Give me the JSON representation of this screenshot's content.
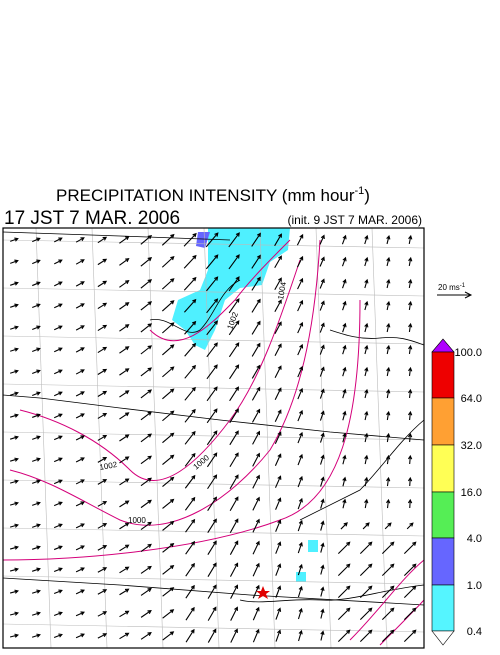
{
  "header": {
    "title": {
      "text": "PRECIPITATION INTENSITY (mm hour",
      "superscript": "-1",
      "close": ")"
    },
    "valid_time": "17 JST 7 MAR. 2006",
    "init_time": "(init. 9 JST 7 MAR. 2006)"
  },
  "wind_scale": {
    "text": "20 ms",
    "superscript": "-1"
  },
  "colorbar": {
    "labels": [
      "100.0",
      "64.0",
      "32.0",
      "16.0",
      "4.0",
      "1.0",
      "0.4"
    ]
  },
  "isobars": {
    "labels": [
      "1004",
      "1002",
      "1002",
      "1000",
      "1000"
    ]
  }
}
